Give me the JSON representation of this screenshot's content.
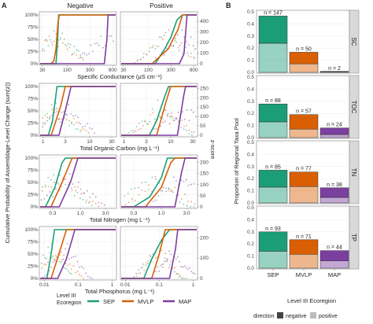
{
  "colors": {
    "SEP": "#1b9e77",
    "MVLP": "#d95f02",
    "MAP": "#7b3fa0",
    "strip": "#d9d9d9"
  },
  "panel_a": {
    "letter": "A",
    "columns": [
      "Negative",
      "Positive"
    ],
    "y_left_label": "Cumulative Probability of Assemblage-Level Change (sum(z))",
    "y_right_label": "z-score",
    "left_ticks": [
      "0%",
      "25%",
      "50%",
      "75%",
      "100%"
    ],
    "rows": [
      {
        "xlabel": "Specific Conductance (μS cm⁻¹)",
        "xticks": [
          "30",
          "100",
          "300",
          "900"
        ],
        "zticks": [
          "0",
          "100",
          "200",
          "300",
          "400"
        ],
        "zmax": 460
      },
      {
        "xlabel": "Total Organic Carbon (mg L⁻¹)",
        "xticks": [
          "1",
          "3",
          "10",
          "30"
        ],
        "zticks": [
          "0",
          "50",
          "100",
          "150",
          "200",
          "250"
        ],
        "zmax": 260
      },
      {
        "xlabel": "Total Nitrogen (mg L⁻¹)",
        "xticks": [
          "0.3",
          "1.0",
          "3.0"
        ],
        "zticks": [
          "0",
          "50",
          "100",
          "150",
          "200"
        ],
        "zmax": 220
      },
      {
        "xlabel": "Total Phosphorus (mg L⁻¹)",
        "xticks": [
          "0.01",
          "0.1",
          "1"
        ],
        "zticks": [
          "0",
          "100",
          "200"
        ],
        "zmax": 240
      }
    ],
    "legend_title": "Level III\nEcoregion",
    "legend_items": [
      "SEP",
      "MVLP",
      "MAP"
    ]
  },
  "chart_data": [
    {
      "type": "line",
      "title": "Cumulative probability of assemblage-level change (panel A, step lines)",
      "ylim": [
        0,
        1
      ],
      "series": [
        {
          "name": "SC Negative",
          "SEP": [
            [
              58,
              0
            ],
            [
              62,
              0.4
            ],
            [
              66,
              1
            ]
          ],
          "MVLP": [
            [
              45,
              0
            ],
            [
              52,
              0.05
            ],
            [
              58,
              0.3
            ],
            [
              64,
              0.85
            ],
            [
              68,
              1
            ]
          ],
          "MAP": [
            [
              600,
              0
            ],
            [
              680,
              0.5
            ],
            [
              720,
              1
            ]
          ]
        },
        {
          "name": "SC Positive",
          "SEP": [
            [
              140,
              0
            ],
            [
              220,
              0.3
            ],
            [
              300,
              0.55
            ],
            [
              400,
              0.9
            ],
            [
              520,
              1
            ]
          ],
          "MVLP": [
            [
              120,
              0
            ],
            [
              260,
              0.3
            ],
            [
              420,
              0.7
            ],
            [
              520,
              1
            ]
          ],
          "MAP": [
            [
              450,
              0
            ],
            [
              560,
              0.2
            ],
            [
              650,
              1
            ]
          ]
        },
        {
          "name": "TOC Negative",
          "SEP": [
            [
              1.3,
              0
            ],
            [
              1.6,
              0.3
            ],
            [
              2.0,
              1
            ]
          ],
          "MVLP": [
            [
              1.5,
              0
            ],
            [
              2.4,
              0.6
            ],
            [
              3.0,
              1
            ]
          ],
          "MAP": [
            [
              2.2,
              0
            ],
            [
              3.0,
              0.5
            ],
            [
              4.0,
              1
            ]
          ]
        },
        {
          "name": "TOC Positive",
          "SEP": [
            [
              3.5,
              0
            ],
            [
              5.0,
              0.3
            ],
            [
              7.5,
              0.8
            ],
            [
              9,
              1
            ]
          ],
          "MVLP": [
            [
              5,
              0
            ],
            [
              7.5,
              0.6
            ],
            [
              10,
              1
            ]
          ],
          "MAP": [
            [
              14,
              0
            ],
            [
              19,
              0.8
            ],
            [
              21,
              1
            ]
          ]
        },
        {
          "name": "TN Negative",
          "SEP": [
            [
              0.22,
              0
            ],
            [
              0.33,
              0.4
            ],
            [
              0.45,
              0.9
            ],
            [
              0.52,
              1
            ]
          ],
          "MVLP": [
            [
              0.28,
              0
            ],
            [
              0.45,
              0.5
            ],
            [
              0.7,
              1
            ]
          ],
          "MAP": [
            [
              0.4,
              0
            ],
            [
              0.65,
              0.5
            ],
            [
              0.9,
              1
            ]
          ]
        },
        {
          "name": "TN Positive",
          "SEP": [
            [
              0.3,
              0
            ],
            [
              0.6,
              0.2
            ],
            [
              1.0,
              0.6
            ],
            [
              1.3,
              1
            ]
          ],
          "MVLP": [
            [
              0.5,
              0
            ],
            [
              1.0,
              0.4
            ],
            [
              1.5,
              0.9
            ],
            [
              1.8,
              1
            ]
          ],
          "MAP": [
            [
              1.8,
              0
            ],
            [
              2.4,
              0.7
            ],
            [
              2.8,
              1
            ]
          ]
        },
        {
          "name": "TP Negative",
          "SEP": [
            [
              0.012,
              0
            ],
            [
              0.016,
              0.5
            ],
            [
              0.02,
              1
            ]
          ],
          "MVLP": [
            [
              0.016,
              0
            ],
            [
              0.03,
              0.6
            ],
            [
              0.045,
              1
            ]
          ],
          "MAP": [
            [
              0.025,
              0
            ],
            [
              0.045,
              0.4
            ],
            [
              0.08,
              1
            ]
          ]
        },
        {
          "name": "TP Positive",
          "SEP": [
            [
              0.035,
              0
            ],
            [
              0.06,
              0.4
            ],
            [
              0.12,
              0.8
            ],
            [
              0.2,
              1
            ]
          ],
          "MVLP": [
            [
              0.06,
              0
            ],
            [
              0.1,
              0.5
            ],
            [
              0.15,
              1
            ]
          ],
          "MAP": [
            [
              0.2,
              0
            ],
            [
              0.3,
              0.6
            ],
            [
              0.35,
              1
            ]
          ]
        }
      ]
    },
    {
      "type": "bar",
      "title": "Proportion of Regional Taxa Pool (panel B)",
      "xlabel": "Level III Ecoregion",
      "ylabel": "Proportion of Regional Taxa Pool",
      "categories": [
        "SEP",
        "MVLP",
        "MAP"
      ],
      "ylim": [
        0,
        0.5
      ],
      "facets": [
        {
          "name": "SC",
          "n": [
            147,
            50,
            2
          ],
          "total": [
            0.465,
            0.166,
            0.008
          ],
          "negative": [
            0.24,
            0.07,
            0.003
          ]
        },
        {
          "name": "TOC",
          "n": [
            88,
            57,
            24
          ],
          "total": [
            0.278,
            0.19,
            0.08
          ],
          "negative": [
            0.13,
            0.07,
            0.025
          ]
        },
        {
          "name": "TN",
          "n": [
            85,
            77,
            38
          ],
          "total": [
            0.27,
            0.255,
            0.125
          ],
          "negative": [
            0.13,
            0.135,
            0.045
          ]
        },
        {
          "name": "TP",
          "n": [
            93,
            71,
            44
          ],
          "total": [
            0.3,
            0.235,
            0.145
          ],
          "negative": [
            0.14,
            0.115,
            0.06
          ]
        }
      ],
      "legend_title": "direction",
      "legend_items": [
        "negative",
        "positive"
      ]
    }
  ],
  "panel_b_text": {
    "letter": "B",
    "facet_names": [
      "SC",
      "TOC",
      "TN",
      "TP"
    ],
    "yticks": [
      "0.0",
      "0.1",
      "0.2",
      "0.3",
      "0.4",
      "0.5"
    ],
    "x_categories": [
      "SEP",
      "MVLP",
      "MAP"
    ],
    "n_prefix": "n = "
  }
}
